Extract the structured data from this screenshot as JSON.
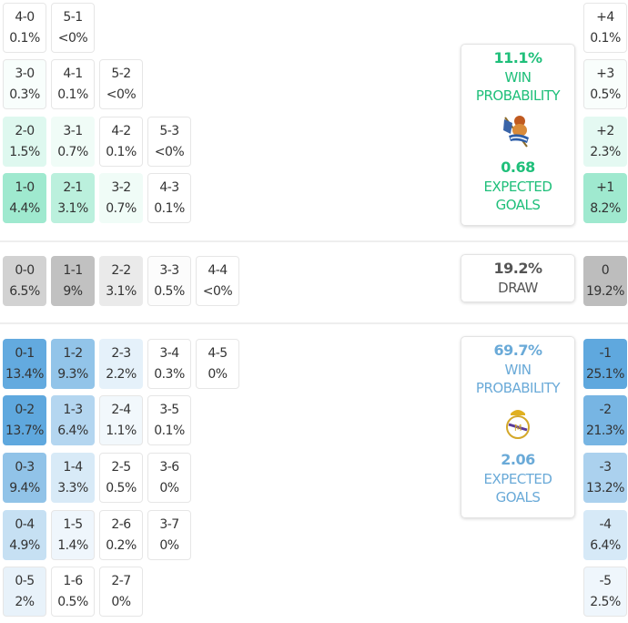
{
  "colors": {
    "home": "#9fe9cf",
    "away": "#5fa8de",
    "draw": "#bdbdbd",
    "home_text": "#1fbf7a",
    "away_text": "#6aaad8",
    "draw_text": "#555555"
  },
  "home_grid": [
    [
      {
        "s": "4-0",
        "p": "0.1%",
        "v": 0.1
      },
      {
        "s": "5-1",
        "p": "<0%",
        "v": 0
      }
    ],
    [
      {
        "s": "3-0",
        "p": "0.3%",
        "v": 0.3
      },
      {
        "s": "4-1",
        "p": "0.1%",
        "v": 0.1
      },
      {
        "s": "5-2",
        "p": "<0%",
        "v": 0
      }
    ],
    [
      {
        "s": "2-0",
        "p": "1.5%",
        "v": 1.5
      },
      {
        "s": "3-1",
        "p": "0.7%",
        "v": 0.7
      },
      {
        "s": "4-2",
        "p": "0.1%",
        "v": 0.1
      },
      {
        "s": "5-3",
        "p": "<0%",
        "v": 0
      }
    ],
    [
      {
        "s": "1-0",
        "p": "4.4%",
        "v": 4.4
      },
      {
        "s": "2-1",
        "p": "3.1%",
        "v": 3.1
      },
      {
        "s": "3-2",
        "p": "0.7%",
        "v": 0.7
      },
      {
        "s": "4-3",
        "p": "0.1%",
        "v": 0.1
      }
    ]
  ],
  "draw_row": [
    {
      "s": "0-0",
      "p": "6.5%",
      "v": 6.5
    },
    {
      "s": "1-1",
      "p": "9%",
      "v": 9
    },
    {
      "s": "2-2",
      "p": "3.1%",
      "v": 3.1
    },
    {
      "s": "3-3",
      "p": "0.5%",
      "v": 0.5
    },
    {
      "s": "4-4",
      "p": "<0%",
      "v": 0
    }
  ],
  "away_grid": [
    [
      {
        "s": "0-1",
        "p": "13.4%",
        "v": 13.4
      },
      {
        "s": "1-2",
        "p": "9.3%",
        "v": 9.3
      },
      {
        "s": "2-3",
        "p": "2.2%",
        "v": 2.2
      },
      {
        "s": "3-4",
        "p": "0.3%",
        "v": 0.3
      },
      {
        "s": "4-5",
        "p": "0%",
        "v": 0
      }
    ],
    [
      {
        "s": "0-2",
        "p": "13.7%",
        "v": 13.7
      },
      {
        "s": "1-3",
        "p": "6.4%",
        "v": 6.4
      },
      {
        "s": "2-4",
        "p": "1.1%",
        "v": 1.1
      },
      {
        "s": "3-5",
        "p": "0.1%",
        "v": 0.1
      }
    ],
    [
      {
        "s": "0-3",
        "p": "9.4%",
        "v": 9.4
      },
      {
        "s": "1-4",
        "p": "3.3%",
        "v": 3.3
      },
      {
        "s": "2-5",
        "p": "0.5%",
        "v": 0.5
      },
      {
        "s": "3-6",
        "p": "0%",
        "v": 0
      }
    ],
    [
      {
        "s": "0-4",
        "p": "4.9%",
        "v": 4.9
      },
      {
        "s": "1-5",
        "p": "1.4%",
        "v": 1.4
      },
      {
        "s": "2-6",
        "p": "0.2%",
        "v": 0.2
      },
      {
        "s": "3-7",
        "p": "0%",
        "v": 0
      }
    ],
    [
      {
        "s": "0-5",
        "p": "2%",
        "v": 2
      },
      {
        "s": "1-6",
        "p": "0.5%",
        "v": 0.5
      },
      {
        "s": "2-7",
        "p": "0%",
        "v": 0
      }
    ]
  ],
  "margins_home": [
    {
      "s": "+4",
      "p": "0.1%",
      "v": 0.1
    },
    {
      "s": "+3",
      "p": "0.5%",
      "v": 0.5
    },
    {
      "s": "+2",
      "p": "2.3%",
      "v": 2.3
    },
    {
      "s": "+1",
      "p": "8.2%",
      "v": 8.2
    }
  ],
  "margin_draw": {
    "s": "0",
    "p": "19.2%",
    "v": 19.2
  },
  "margins_away": [
    {
      "s": "-1",
      "p": "25.1%",
      "v": 25.1
    },
    {
      "s": "-2",
      "p": "21.3%",
      "v": 21.3
    },
    {
      "s": "-3",
      "p": "13.2%",
      "v": 13.2
    },
    {
      "s": "-4",
      "p": "6.4%",
      "v": 6.4
    },
    {
      "s": "-5",
      "p": "2.5%",
      "v": 2.5
    }
  ],
  "home_summary": {
    "win": "11.1%",
    "win_label_1": "WIN",
    "win_label_2": "PROBABILITY",
    "xg": "0.68",
    "xg_label_1": "EXPECTED",
    "xg_label_2": "GOALS",
    "crest": "real-sociedad-crest"
  },
  "draw_summary": {
    "value": "19.2%",
    "label": "DRAW"
  },
  "away_summary": {
    "win": "69.7%",
    "win_label_1": "WIN",
    "win_label_2": "PROBABILITY",
    "xg": "2.06",
    "xg_label_1": "EXPECTED",
    "xg_label_2": "GOALS",
    "crest": "real-madrid-crest"
  }
}
